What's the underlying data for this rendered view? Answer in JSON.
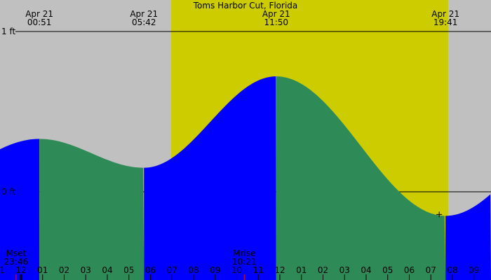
{
  "chart_data": {
    "type": "area",
    "title": "Toms Harbor Cut, Florida",
    "y_unit": "ft",
    "y_ticks": [
      {
        "value": 1,
        "label": "1 ft"
      },
      {
        "value": 0,
        "label": "0 ft"
      }
    ],
    "extremes": [
      {
        "date": "Apr 21",
        "time": "00:51",
        "hour": 0.85,
        "height": 0.33,
        "kind": "high"
      },
      {
        "date": "Apr 21",
        "time": "05:42",
        "hour": 5.7,
        "height": 0.15,
        "kind": "low"
      },
      {
        "date": "Apr 21",
        "time": "11:50",
        "hour": 11.83,
        "height": 0.72,
        "kind": "high"
      },
      {
        "date": "Apr 21",
        "time": "19:41",
        "hour": 19.68,
        "height": -0.15,
        "kind": "low"
      }
    ],
    "daylight": {
      "start_hour": 6.96,
      "end_hour": 19.8
    },
    "moon_events": [
      {
        "label": "Mset",
        "time": "23:46",
        "hour": -0.23
      },
      {
        "label": "Mrise",
        "time": "10:21",
        "hour": 10.35
      }
    ],
    "hour_labels": [
      "11",
      "12",
      "01",
      "02",
      "03",
      "04",
      "05",
      "06",
      "07",
      "08",
      "09",
      "10",
      "11",
      "12",
      "01",
      "02",
      "03",
      "04",
      "05",
      "06",
      "07",
      "08",
      "09"
    ],
    "x_range_hours": [
      -0.98,
      21.8
    ],
    "colors": {
      "background": "#c0c0c0",
      "daylight": "#cccc00",
      "rising": "#0000ff",
      "falling": "#2e8b57"
    }
  }
}
